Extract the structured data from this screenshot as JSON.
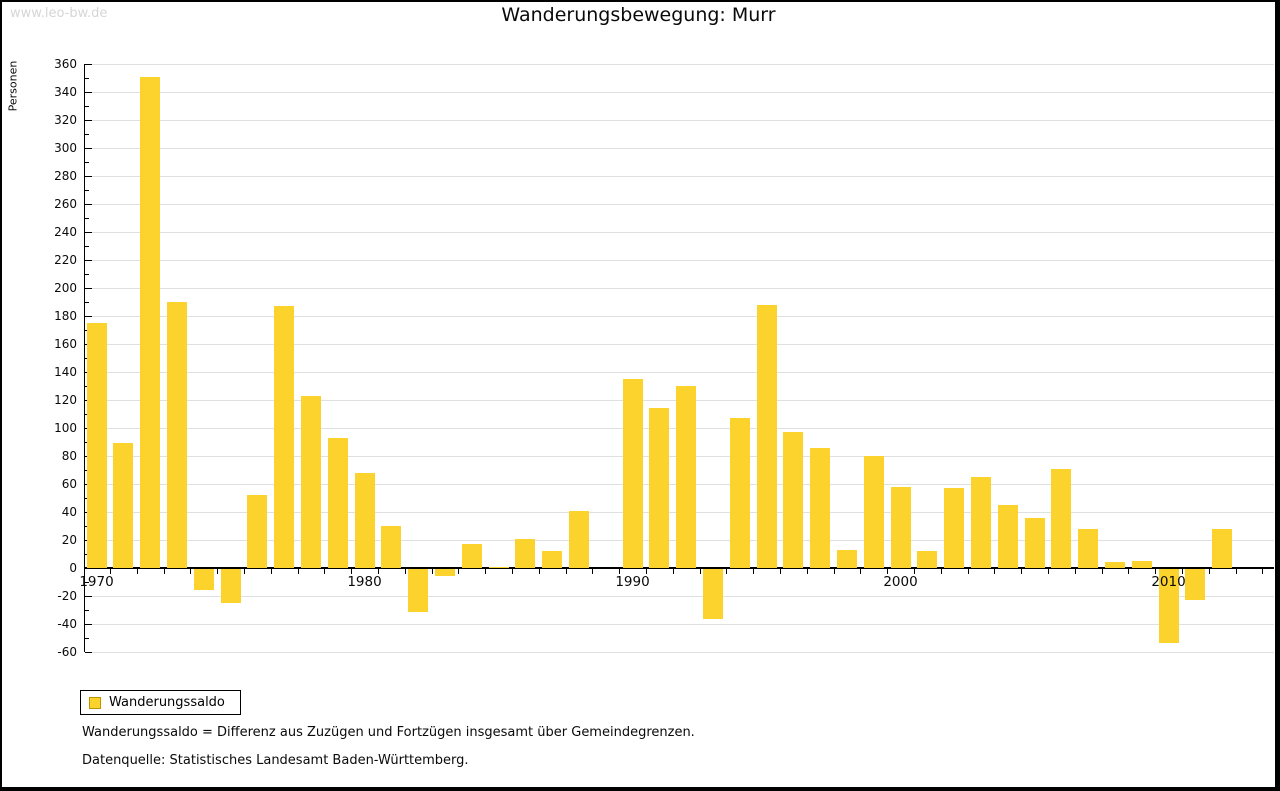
{
  "page": {
    "watermark": "www.leo-bw.de",
    "title": "Wanderungsbewegung: Murr"
  },
  "legend": {
    "label": "Wanderungssaldo",
    "swatch_color": "#FBD32C",
    "swatch_border_color": "#bf9300"
  },
  "footnotes": [
    "Wanderungssaldo = Differenz aus Zuzügen und Fortzügen insgesamt über Gemeindegrenzen.",
    "Datenquelle: Statistisches Landesamt Baden-Württemberg."
  ],
  "chart_data": {
    "type": "bar",
    "title": "Wanderungsbewegung: Murr",
    "xlabel": "",
    "ylabel": "Personen",
    "ylim": [
      -60,
      360
    ],
    "ytick_step": 20,
    "ytick_minor_step": 10,
    "grid": true,
    "legend_position": "bottom-left",
    "x_labeled_ticks": [
      1970,
      1980,
      1990,
      2000,
      2010
    ],
    "x": [
      1970,
      1971,
      1972,
      1973,
      1974,
      1975,
      1976,
      1977,
      1978,
      1979,
      1980,
      1981,
      1982,
      1983,
      1984,
      1985,
      1986,
      1987,
      1988,
      1989,
      1990,
      1991,
      1992,
      1993,
      1994,
      1995,
      1996,
      1997,
      1998,
      1999,
      2000,
      2001,
      2002,
      2003,
      2004,
      2005,
      2006,
      2007,
      2008,
      2009,
      2010,
      2011,
      2012
    ],
    "series": [
      {
        "name": "Wanderungssaldo",
        "color": "#FBD32C",
        "values": [
          175,
          89,
          351,
          190,
          -15,
          -24,
          52,
          187,
          123,
          93,
          68,
          30,
          -31,
          -5,
          17,
          1,
          21,
          12,
          41,
          0,
          135,
          114,
          130,
          -36,
          107,
          188,
          97,
          86,
          13,
          80,
          58,
          12,
          57,
          65,
          45,
          36,
          71,
          28,
          4,
          5,
          -53,
          -22,
          28
        ]
      }
    ]
  }
}
